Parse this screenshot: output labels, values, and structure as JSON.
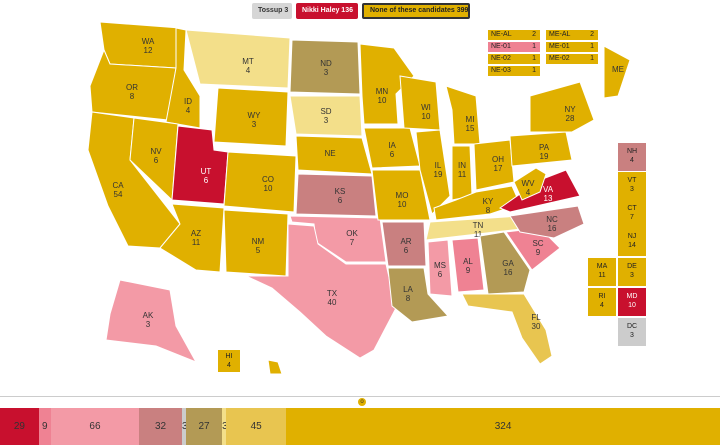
{
  "legend": {
    "tossup": "Tossup 3",
    "haley": "Nikki Haley 136",
    "none": "None of these candidates 399"
  },
  "colors": {
    "none": "#e0b000",
    "none_likely": "#e8c550",
    "none_lean": "#f3df8a",
    "tilt": "#b39a55",
    "haley_lean": "#c98080",
    "haley_likely": "#ef8293",
    "haley_safe_light": "#f39aa6",
    "haley": "#c8102e",
    "tossup": "#cccccc"
  },
  "states": {
    "WA": {
      "name": "WA",
      "ev": "12"
    },
    "OR": {
      "name": "OR",
      "ev": "8"
    },
    "CA": {
      "name": "CA",
      "ev": "54"
    },
    "ID": {
      "name": "ID",
      "ev": "4"
    },
    "NV": {
      "name": "NV",
      "ev": "6"
    },
    "UT": {
      "name": "UT",
      "ev": "6"
    },
    "AZ": {
      "name": "AZ",
      "ev": "11"
    },
    "MT": {
      "name": "MT",
      "ev": "4"
    },
    "WY": {
      "name": "WY",
      "ev": "3"
    },
    "CO": {
      "name": "CO",
      "ev": "10"
    },
    "NM": {
      "name": "NM",
      "ev": "5"
    },
    "ND": {
      "name": "ND",
      "ev": "3"
    },
    "SD": {
      "name": "SD",
      "ev": "3"
    },
    "NE": {
      "name": "NE",
      "ev": ""
    },
    "KS": {
      "name": "KS",
      "ev": "6"
    },
    "OK": {
      "name": "OK",
      "ev": "7"
    },
    "TX": {
      "name": "TX",
      "ev": "40"
    },
    "MN": {
      "name": "MN",
      "ev": "10"
    },
    "IA": {
      "name": "IA",
      "ev": "6"
    },
    "MO": {
      "name": "MO",
      "ev": "10"
    },
    "AR": {
      "name": "AR",
      "ev": "6"
    },
    "LA": {
      "name": "LA",
      "ev": "8"
    },
    "WI": {
      "name": "WI",
      "ev": "10"
    },
    "IL": {
      "name": "IL",
      "ev": "19"
    },
    "MI": {
      "name": "MI",
      "ev": "15"
    },
    "IN": {
      "name": "IN",
      "ev": "11"
    },
    "OH": {
      "name": "OH",
      "ev": "17"
    },
    "KY": {
      "name": "KY",
      "ev": "8"
    },
    "TN": {
      "name": "TN",
      "ev": "11"
    },
    "MS": {
      "name": "MS",
      "ev": "6"
    },
    "AL": {
      "name": "AL",
      "ev": "9"
    },
    "GA": {
      "name": "GA",
      "ev": "16"
    },
    "FL": {
      "name": "FL",
      "ev": "30"
    },
    "SC": {
      "name": "SC",
      "ev": "9"
    },
    "NC": {
      "name": "NC",
      "ev": "16"
    },
    "VA": {
      "name": "VA",
      "ev": "13"
    },
    "WV": {
      "name": "WV",
      "ev": "4"
    },
    "PA": {
      "name": "PA",
      "ev": "19"
    },
    "NY": {
      "name": "NY",
      "ev": "28"
    },
    "ME": {
      "name": "ME",
      "ev": ""
    },
    "AK": {
      "name": "AK",
      "ev": "3"
    },
    "HI": {
      "name": "HI",
      "ev": "4"
    }
  },
  "boxes": [
    {
      "name": "NH",
      "ev": "4",
      "color": "#c98080"
    },
    {
      "name": "VT",
      "ev": "3",
      "color": "#e0b000"
    },
    {
      "name": "CT",
      "ev": "7",
      "color": "#e0b000"
    },
    {
      "name": "NJ",
      "ev": "14",
      "color": "#e0b000"
    },
    {
      "name": "DE",
      "ev": "3",
      "color": "#e0b000"
    },
    {
      "name": "MD",
      "ev": "10",
      "color": "#c8102e"
    },
    {
      "name": "DC",
      "ev": "3",
      "color": "#cccccc"
    },
    {
      "name": "MA",
      "ev": "11",
      "color": "#e0b000"
    },
    {
      "name": "RI",
      "ev": "4",
      "color": "#e0b000"
    }
  ],
  "ne_districts": [
    {
      "name": "NE-AL",
      "ev": "2",
      "color": "#e0b000"
    },
    {
      "name": "NE-01",
      "ev": "1",
      "color": "#ef8293"
    },
    {
      "name": "NE-02",
      "ev": "1",
      "color": "#e0b000"
    },
    {
      "name": "NE-03",
      "ev": "1",
      "color": "#e0b000"
    }
  ],
  "me_districts": [
    {
      "name": "ME-AL",
      "ev": "2",
      "color": "#e0b000"
    },
    {
      "name": "ME-01",
      "ev": "1",
      "color": "#e0b000"
    },
    {
      "name": "ME-02",
      "ev": "1",
      "color": "#e0b000"
    }
  ],
  "bar": {
    "segments": [
      {
        "label": "29",
        "value": 29,
        "color": "#c8102e"
      },
      {
        "label": "9",
        "value": 9,
        "color": "#ef8293"
      },
      {
        "label": "66",
        "value": 66,
        "color": "#f39aa6"
      },
      {
        "label": "32",
        "value": 32,
        "color": "#c98080"
      },
      {
        "label": "3",
        "value": 3,
        "color": "#cccccc"
      },
      {
        "label": "27",
        "value": 27,
        "color": "#b39a55"
      },
      {
        "label": "3",
        "value": 3,
        "color": "#f3df8a"
      },
      {
        "label": "45",
        "value": 45,
        "color": "#e8c550"
      },
      {
        "label": "324",
        "value": 324,
        "color": "#e0b000"
      }
    ],
    "marker": "o"
  }
}
